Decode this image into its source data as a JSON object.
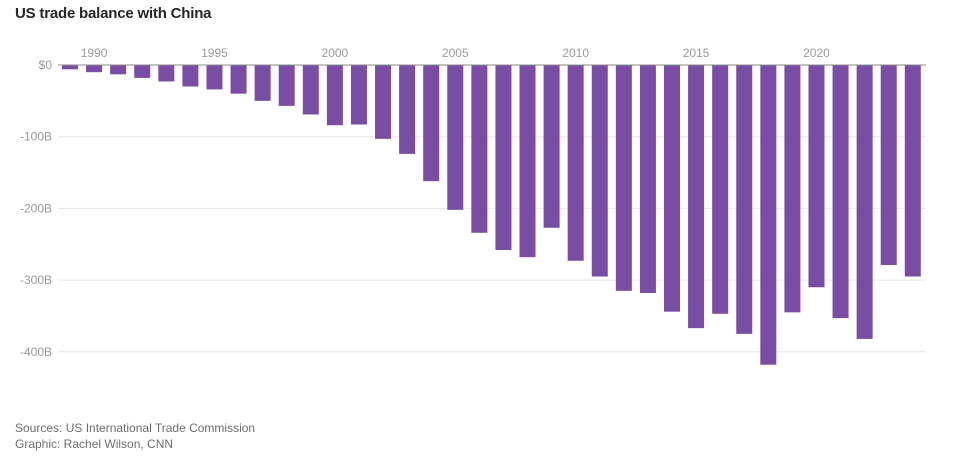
{
  "chart_data": {
    "type": "bar",
    "title": "US trade balance with China",
    "xlabel": "",
    "ylabel": "",
    "x_tick_labels": [
      "1990",
      "1995",
      "2000",
      "2005",
      "2010",
      "2015",
      "2020"
    ],
    "y_tick_labels": [
      "$0",
      "-100B",
      "-200B",
      "-300B",
      "-400B"
    ],
    "y_ticks": [
      0,
      -100,
      -200,
      -300,
      -400
    ],
    "ylim": [
      -430,
      0
    ],
    "grid": true,
    "bar_color": "#7a4da4",
    "categories": [
      1989,
      1990,
      1991,
      1992,
      1993,
      1994,
      1995,
      1996,
      1997,
      1998,
      1999,
      2000,
      2001,
      2002,
      2003,
      2004,
      2005,
      2006,
      2007,
      2008,
      2009,
      2010,
      2011,
      2012,
      2013,
      2014,
      2015,
      2016,
      2017,
      2018,
      2019,
      2020,
      2021,
      2022,
      2023,
      2024
    ],
    "values": [
      -6,
      -10,
      -13,
      -18,
      -23,
      -30,
      -34,
      -40,
      -50,
      -57,
      -69,
      -84,
      -83,
      -103,
      -124,
      -162,
      -202,
      -234,
      -258,
      -268,
      -227,
      -273,
      -295,
      -315,
      -318,
      -344,
      -367,
      -347,
      -375,
      -418,
      -345,
      -310,
      -353,
      -382,
      -279,
      -295
    ]
  },
  "footer": {
    "source": "Sources: US International Trade Commission",
    "graphic": "Graphic: Rachel Wilson, CNN"
  }
}
